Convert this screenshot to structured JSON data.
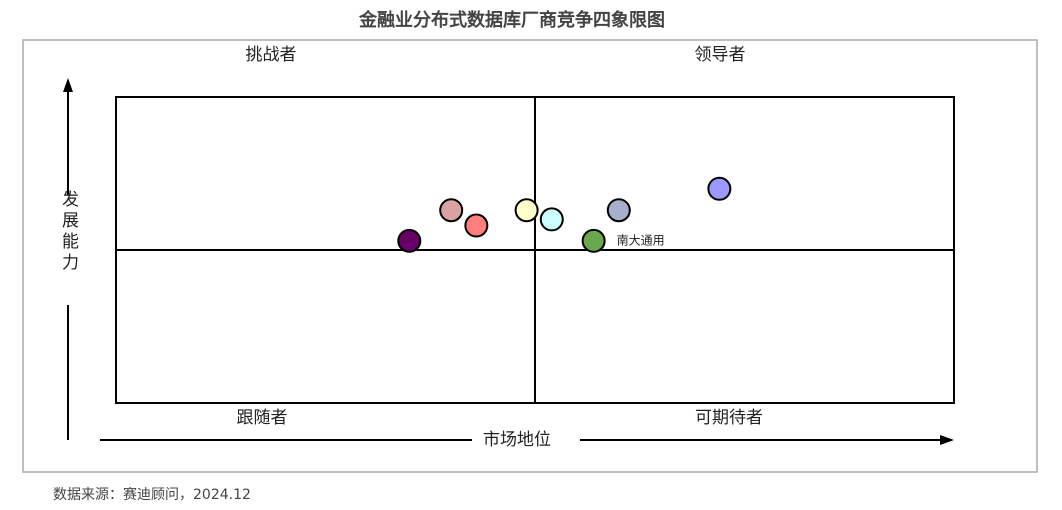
{
  "chart_data": {
    "type": "scatter",
    "title": "金融业分布式数据库厂商竞争四象限图",
    "x_label": "市场地位",
    "y_label": "发展能力",
    "quadrant_labels": {
      "top_left": "挑战者",
      "top_right": "领导者",
      "bottom_left": "跟随者",
      "bottom_right": "可期待者"
    },
    "xlim": [
      0,
      10
    ],
    "ylim": [
      0,
      10
    ],
    "x": [
      3.5,
      4.0,
      4.3,
      4.9,
      5.2,
      6.0,
      5.7,
      7.2
    ],
    "values": [
      5.3,
      6.3,
      5.8,
      6.3,
      6.0,
      6.3,
      5.3,
      7.0
    ],
    "colors": [
      "#660066",
      "#d9a3a3",
      "#ff7f7f",
      "#ffffcc",
      "#ccffff",
      "#a6b0cc",
      "#6aa84f",
      "#9999ff"
    ],
    "labels": [
      null,
      null,
      null,
      null,
      null,
      null,
      "南大通用",
      null
    ]
  },
  "source": "数据来源：赛迪顾问，2024.12"
}
